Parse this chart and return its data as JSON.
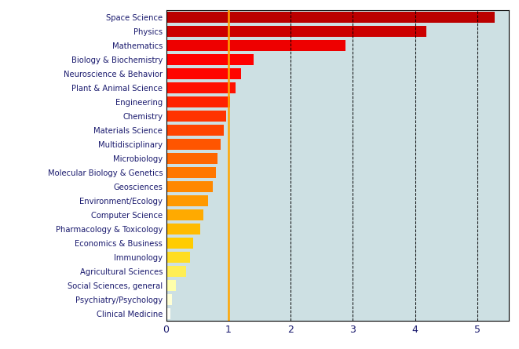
{
  "categories": [
    "Clinical Medicine",
    "Psychiatry/Psychology",
    "Social Sciences, general",
    "Agricultural Sciences",
    "Immunology",
    "Economics & Business",
    "Pharmacology & Toxicology",
    "Computer Science",
    "Environment/Ecology",
    "Geosciences",
    "Molecular Biology & Genetics",
    "Microbiology",
    "Multidisciplinary",
    "Materials Science",
    "Chemistry",
    "Engineering",
    "Plant & Animal Science",
    "Neuroscience & Behavior",
    "Biology & Biochemistry",
    "Mathematics",
    "Physics",
    "Space Science"
  ],
  "values": [
    0.07,
    0.1,
    0.16,
    0.32,
    0.38,
    0.43,
    0.55,
    0.6,
    0.68,
    0.75,
    0.8,
    0.83,
    0.87,
    0.93,
    0.97,
    1.03,
    1.12,
    1.2,
    1.4,
    2.88,
    4.18,
    5.28
  ],
  "color_map": [
    "#fffff5",
    "#ffffd5",
    "#ffffaa",
    "#ffee55",
    "#ffdd22",
    "#ffcc00",
    "#ffbb00",
    "#ffaa00",
    "#ff9900",
    "#ff8800",
    "#ff7700",
    "#ff6600",
    "#ff5500",
    "#ff4400",
    "#ff3300",
    "#ff2200",
    "#ff1100",
    "#ff0500",
    "#ff0000",
    "#ee0000",
    "#cc0000",
    "#bb0000"
  ],
  "vline_x": 1.0,
  "vline_color": "#FFA500",
  "xlim": [
    0,
    5.5
  ],
  "xticks": [
    0,
    1,
    2,
    3,
    4,
    5
  ],
  "background_color": "#cde0e3",
  "bar_height": 0.78
}
